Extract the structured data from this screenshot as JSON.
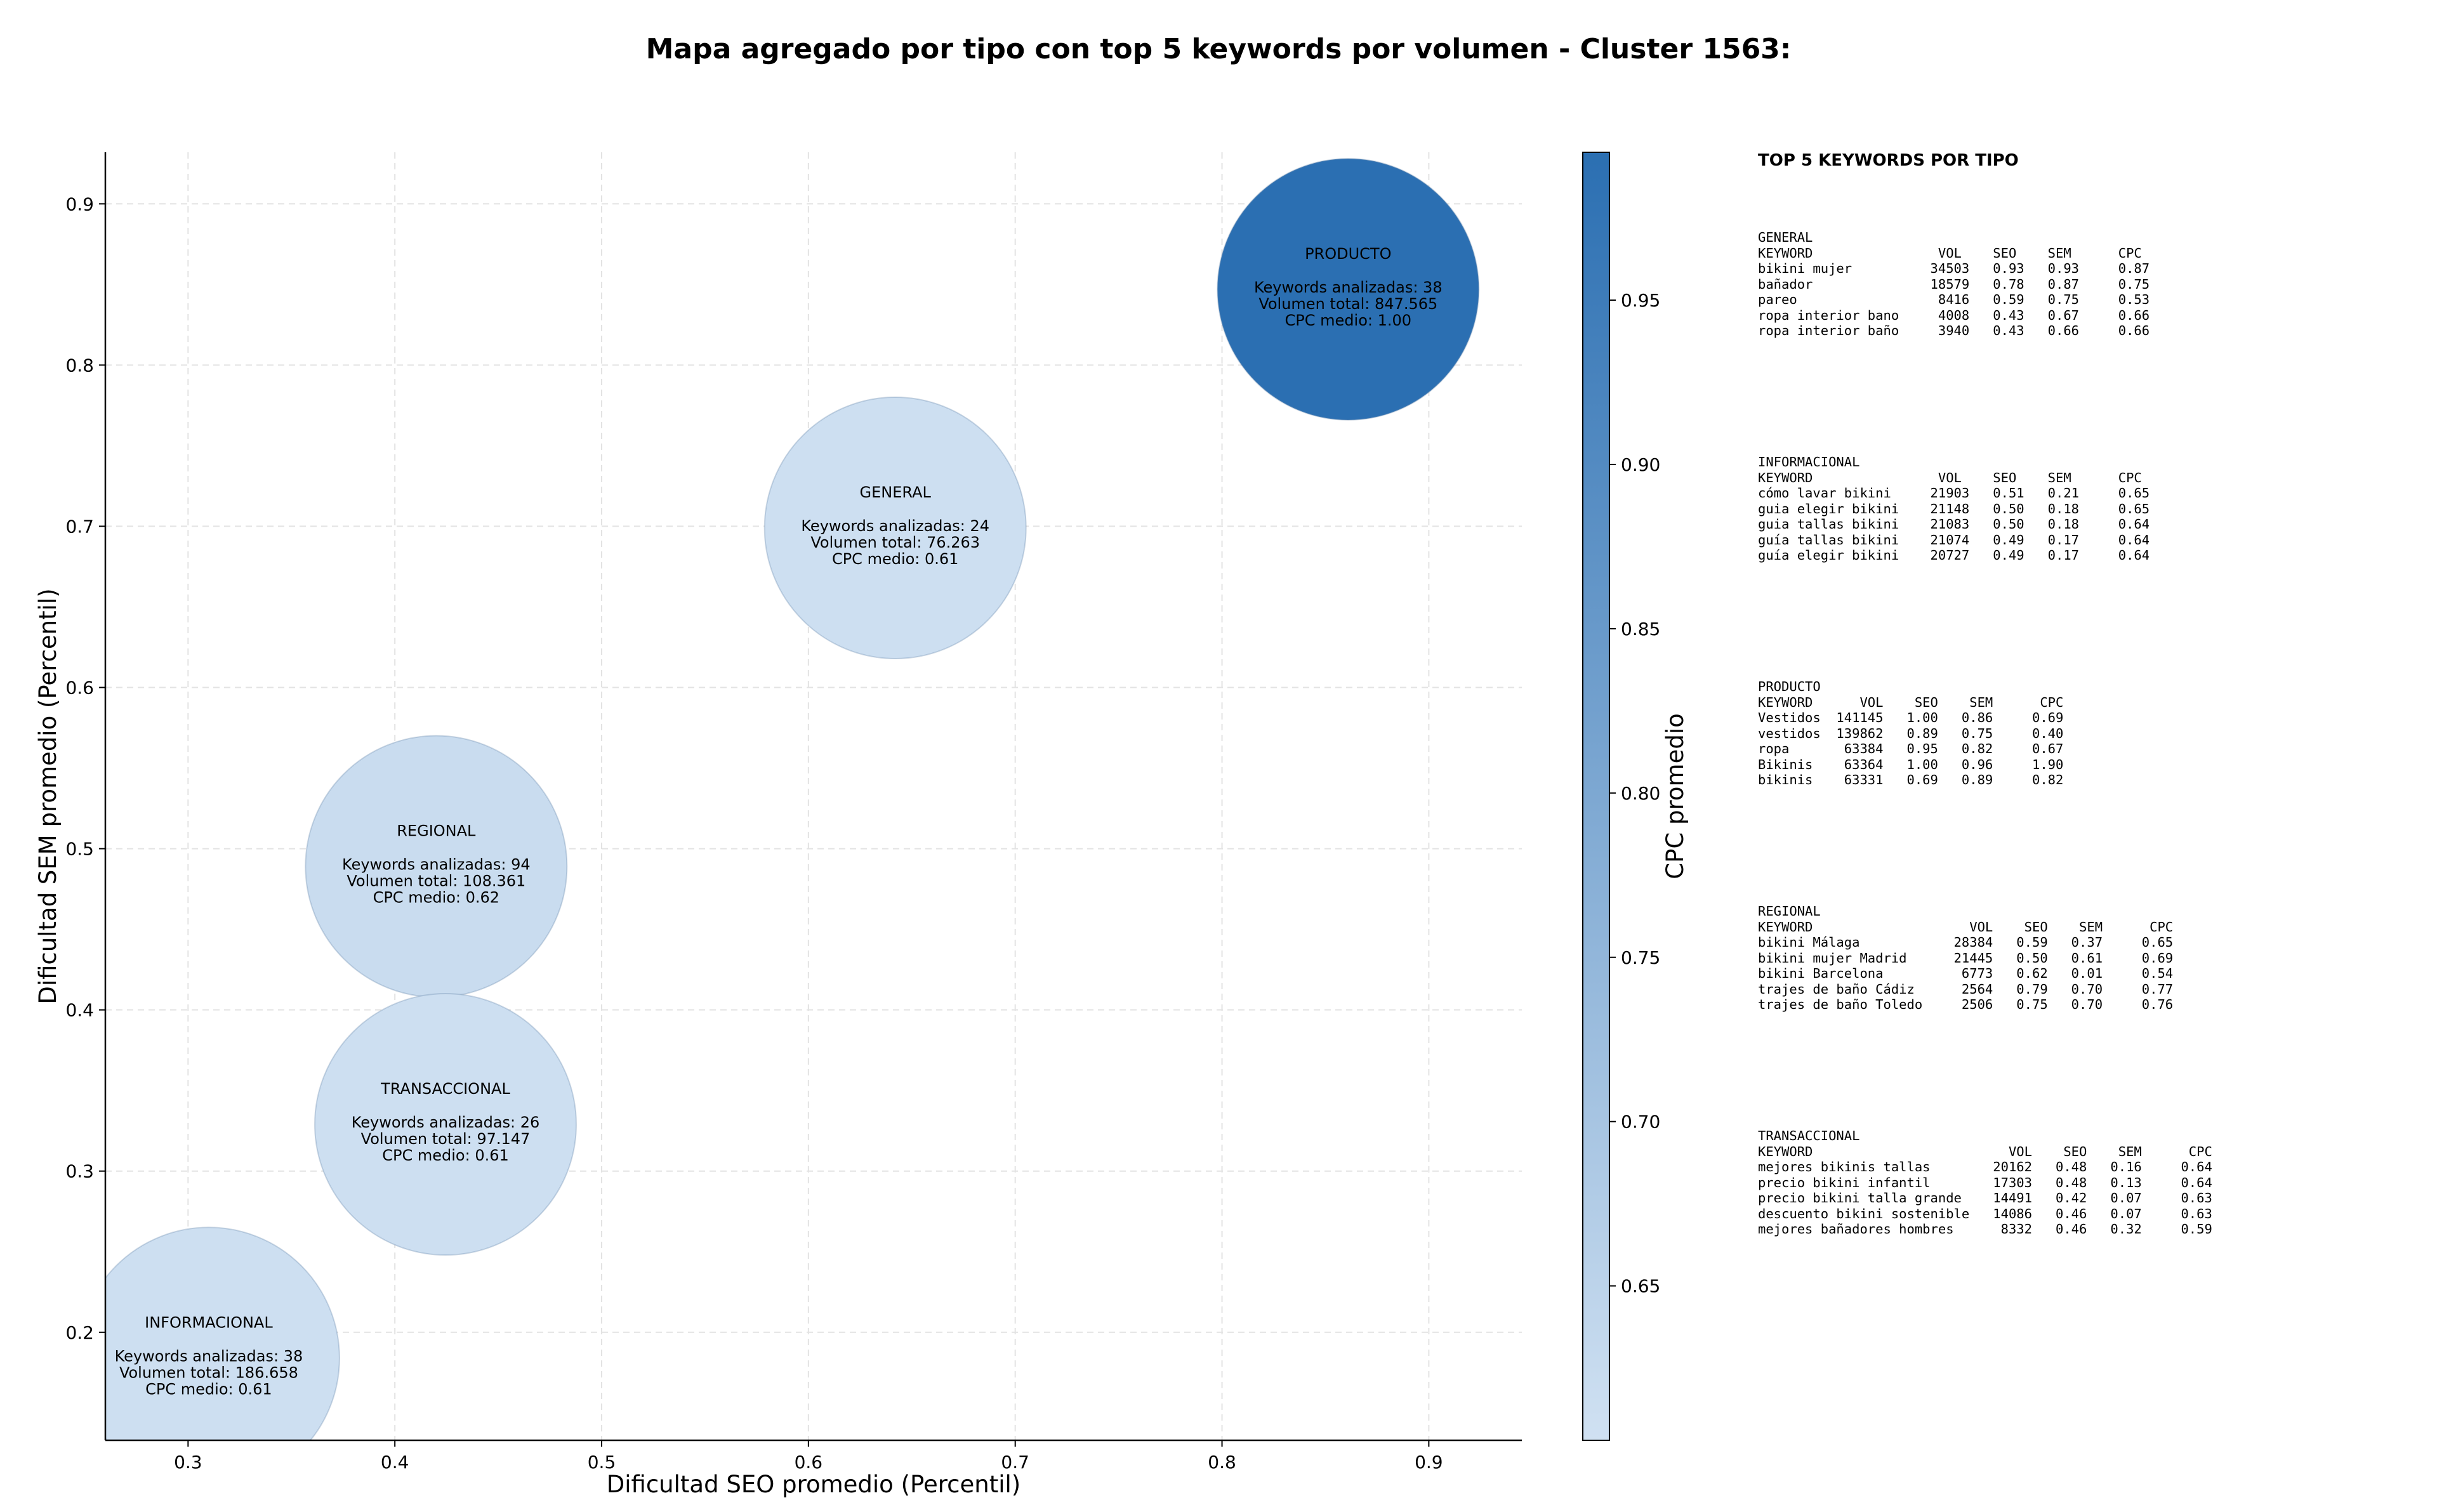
{
  "chart_data": {
    "type": "scatter",
    "title": "Mapa agregado por tipo con top 5 keywords por volumen - Cluster 1563:",
    "xlabel": "Dificultad SEO promedio (Percentil)",
    "ylabel": "Dificultad SEM promedio (Percentil)",
    "xlim": [
      0.26,
      0.945
    ],
    "ylim": [
      0.133,
      0.932
    ],
    "xticks": [
      "0.3",
      "0.4",
      "0.5",
      "0.6",
      "0.7",
      "0.8",
      "0.9"
    ],
    "yticks": [
      "0.2",
      "0.3",
      "0.4",
      "0.5",
      "0.6",
      "0.7",
      "0.8",
      "0.9"
    ],
    "grid": true,
    "colorbar": {
      "label": "CPC promedio",
      "range": [
        0.603,
        0.995
      ],
      "ticks": [
        "0.65",
        "0.70",
        "0.75",
        "0.80",
        "0.85",
        "0.90",
        "0.95"
      ],
      "color_low": "#d0e1f2",
      "color_high": "#2b6fb2"
    },
    "points": [
      {
        "label": "PRODUCTO",
        "x": 0.861,
        "y": 0.847,
        "cpc": 1.0,
        "keywords_text": "Keywords analizadas: 38",
        "volume_text": "Volumen total: 847.565",
        "cpc_text": "CPC medio: 1.00"
      },
      {
        "label": "GENERAL",
        "x": 0.642,
        "y": 0.699,
        "cpc": 0.61,
        "keywords_text": "Keywords analizadas: 24",
        "volume_text": "Volumen total: 76.263",
        "cpc_text": "CPC medio: 0.61"
      },
      {
        "label": "REGIONAL",
        "x": 0.42,
        "y": 0.489,
        "cpc": 0.62,
        "keywords_text": "Keywords analizadas: 94",
        "volume_text": "Volumen total: 108.361",
        "cpc_text": "CPC medio: 0.62"
      },
      {
        "label": "TRANSACCIONAL",
        "x": 0.4245,
        "y": 0.329,
        "cpc": 0.61,
        "keywords_text": "Keywords analizadas: 26",
        "volume_text": "Volumen total: 97.147",
        "cpc_text": "CPC medio: 0.61"
      },
      {
        "label": "INFORMACIONAL",
        "x": 0.31,
        "y": 0.184,
        "cpc": 0.61,
        "keywords_text": "Keywords analizadas: 38",
        "volume_text": "Volumen total: 186.658",
        "cpc_text": "CPC medio: 0.61"
      }
    ]
  },
  "side_panel": {
    "heading": "TOP 5 KEYWORDS POR TIPO",
    "tables": [
      {
        "name": "GENERAL",
        "header": "KEYWORD                VOL    SEO    SEM      CPC",
        "rows": [
          "bikini mujer          34503   0.93   0.93     0.87",
          "bañador               18579   0.78   0.87     0.75",
          "pareo                  8416   0.59   0.75     0.53",
          "ropa interior bano     4008   0.43   0.67     0.66",
          "ropa interior baño     3940   0.43   0.66     0.66"
        ]
      },
      {
        "name": "INFORMACIONAL",
        "header": "KEYWORD                VOL    SEO    SEM      CPC",
        "rows": [
          "cómo lavar bikini     21903   0.51   0.21     0.65",
          "guia elegir bikini    21148   0.50   0.18     0.65",
          "guia tallas bikini    21083   0.50   0.18     0.64",
          "guía tallas bikini    21074   0.49   0.17     0.64",
          "guía elegir bikini    20727   0.49   0.17     0.64"
        ]
      },
      {
        "name": "PRODUCTO",
        "header": "KEYWORD      VOL    SEO    SEM      CPC",
        "rows": [
          "Vestidos  141145   1.00   0.86     0.69",
          "vestidos  139862   0.89   0.75     0.40",
          "ropa       63384   0.95   0.82     0.67",
          "Bikinis    63364   1.00   0.96     1.90",
          "bikinis    63331   0.69   0.89     0.82"
        ]
      },
      {
        "name": "REGIONAL",
        "header": "KEYWORD                    VOL    SEO    SEM      CPC",
        "rows": [
          "bikini Málaga            28384   0.59   0.37     0.65",
          "bikini mujer Madrid      21445   0.50   0.61     0.69",
          "bikini Barcelona          6773   0.62   0.01     0.54",
          "trajes de baño Cádiz      2564   0.79   0.70     0.77",
          "trajes de baño Toledo     2506   0.75   0.70     0.76"
        ]
      },
      {
        "name": "TRANSACCIONAL",
        "header": "KEYWORD                         VOL    SEO    SEM      CPC",
        "rows": [
          "mejores bikinis tallas        20162   0.48   0.16     0.64",
          "precio bikini infantil        17303   0.48   0.13     0.64",
          "precio bikini talla grande    14491   0.42   0.07     0.63",
          "descuento bikini sostenible   14086   0.46   0.07     0.63",
          "mejores bañadores hombres      8332   0.46   0.32     0.59"
        ]
      }
    ]
  }
}
